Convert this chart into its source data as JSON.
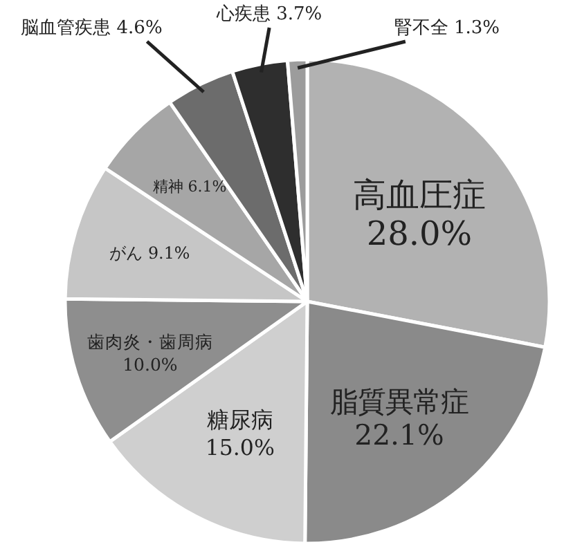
{
  "chart_data": {
    "type": "pie",
    "categories": [
      "高血圧症",
      "脂質異常症",
      "糖尿病",
      "歯肉炎・歯周病",
      "がん",
      "精神",
      "脳血管疾患",
      "心疾患",
      "腎不全"
    ],
    "values": [
      28.0,
      22.1,
      15.0,
      10.0,
      9.1,
      6.1,
      4.6,
      3.7,
      1.3
    ],
    "value_labels": [
      "28.0%",
      "22.1%",
      "15.0%",
      "10.0%",
      "9.1%",
      "6.1%",
      "4.6%",
      "3.7%",
      "1.3%"
    ],
    "colors": [
      "#b2b2b2",
      "#8a8a8a",
      "#cfcfcf",
      "#8e8e8e",
      "#c6c6c6",
      "#a6a6a6",
      "#6c6c6c",
      "#2e2e2e",
      "#9c9c9c"
    ]
  }
}
